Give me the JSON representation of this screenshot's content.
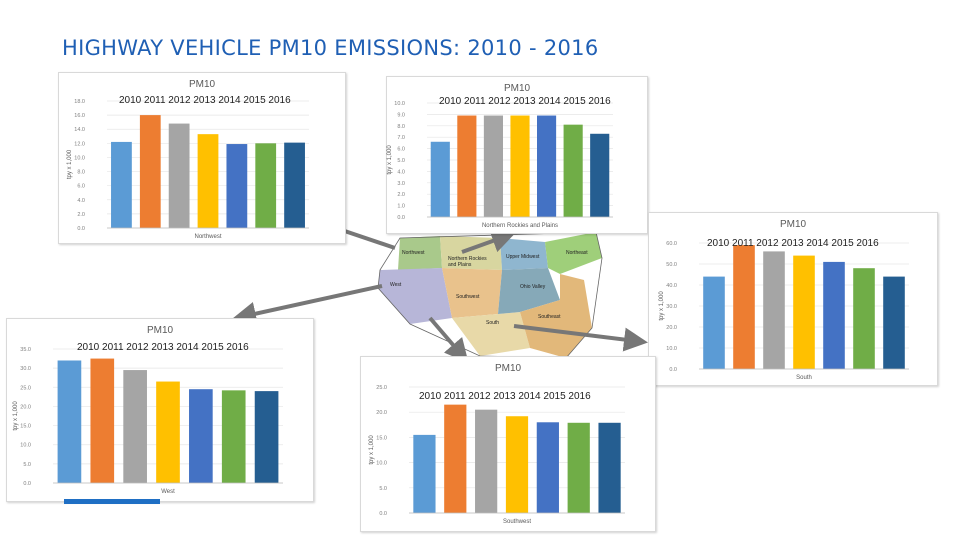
{
  "title": "HIGHWAY VEHICLE PM10 EMISSIONS: 2010 - 2016",
  "year_overlay": "2010  2011  2012  2013  2014 2015  2016",
  "colors": [
    "#5b9bd5",
    "#ed7d31",
    "#a5a5a5",
    "#ffc000",
    "#4472c4",
    "#70ad47",
    "#255e91"
  ],
  "map": {
    "labels": [
      "Northwest",
      "Northern Rockies and Plains",
      "Upper Midwest",
      "Ohio Valley",
      "Northeast",
      "West",
      "Southwest",
      "South",
      "Southeast"
    ]
  },
  "chart_data": [
    {
      "type": "bar",
      "title": "PM10",
      "xlabel": "Northwest",
      "ylabel": "tpy x 1,000",
      "categories": [
        "2010",
        "2011",
        "2012",
        "2013",
        "2014",
        "2015",
        "2016"
      ],
      "values": [
        12.2,
        16.0,
        14.8,
        13.3,
        11.9,
        12.0,
        12.1
      ],
      "ylim": [
        0,
        18
      ],
      "ticks": [
        "0.0",
        "2.0",
        "4.0",
        "6.0",
        "8.0",
        "10.0",
        "12.0",
        "14.0",
        "16.0",
        "18.0"
      ]
    },
    {
      "type": "bar",
      "title": "PM10",
      "xlabel": "Northern Rockies and Plains",
      "ylabel": "tpy x 1,000",
      "categories": [
        "2010",
        "2011",
        "2012",
        "2013",
        "2014",
        "2015",
        "2016"
      ],
      "values": [
        6.6,
        8.9,
        8.9,
        8.9,
        8.9,
        8.1,
        7.3
      ],
      "ylim": [
        0,
        10
      ],
      "ticks": [
        "0.0",
        "1.0",
        "2.0",
        "3.0",
        "4.0",
        "5.0",
        "6.0",
        "7.0",
        "8.0",
        "9.0",
        "10.0"
      ]
    },
    {
      "type": "bar",
      "title": "PM10",
      "xlabel": "South",
      "ylabel": "tpy x 1,000",
      "categories": [
        "2010",
        "2011",
        "2012",
        "2013",
        "2014",
        "2015",
        "2016"
      ],
      "values": [
        44,
        59,
        56,
        54,
        51,
        48,
        44
      ],
      "ylim": [
        0,
        60
      ],
      "ticks": [
        "0.0",
        "10.0",
        "20.0",
        "30.0",
        "40.0",
        "50.0",
        "60.0"
      ]
    },
    {
      "type": "bar",
      "title": "PM10",
      "xlabel": "West",
      "ylabel": "tpy x 1,000",
      "categories": [
        "2010",
        "2011",
        "2012",
        "2013",
        "2014",
        "2015",
        "2016"
      ],
      "values": [
        32.0,
        32.5,
        29.5,
        26.5,
        24.5,
        24.2,
        24.0
      ],
      "ylim": [
        0,
        35
      ],
      "ticks": [
        "0.0",
        "5.0",
        "10.0",
        "15.0",
        "20.0",
        "25.0",
        "30.0",
        "35.0"
      ]
    },
    {
      "type": "bar",
      "title": "PM10",
      "xlabel": "Southwest",
      "ylabel": "tpy x 1,000",
      "categories": [
        "2010",
        "2011",
        "2012",
        "2013",
        "2014",
        "2015",
        "2016"
      ],
      "values": [
        15.5,
        21.5,
        20.5,
        19.2,
        18.0,
        17.9,
        17.9
      ],
      "ylim": [
        0,
        25
      ],
      "ticks": [
        "0.0",
        "5.0",
        "10.0",
        "15.0",
        "20.0",
        "25.0"
      ]
    }
  ]
}
